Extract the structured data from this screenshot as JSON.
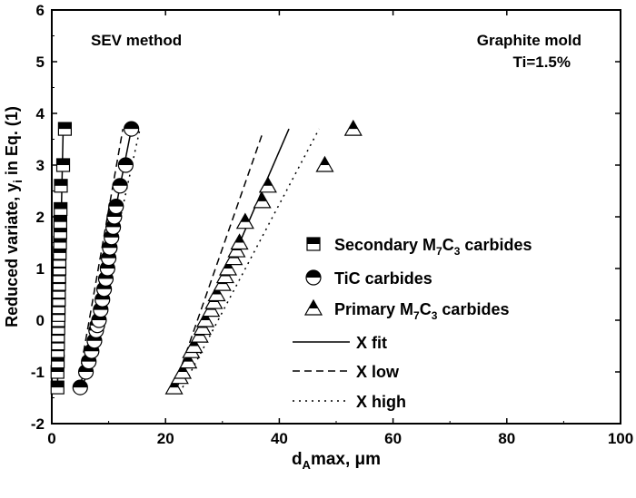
{
  "chart_data": {
    "type": "scatter",
    "xlabel_main": "d",
    "xlabel_sub": "A",
    "xlabel_rest": "max, μm",
    "ylabel_main": "Reduced variate,  y",
    "ylabel_sub": "i",
    "ylabel_rest": " in Eq. (1)",
    "xlim": [
      0,
      100
    ],
    "ylim": [
      -2,
      6
    ],
    "xticks": [
      "0",
      "20",
      "40",
      "60",
      "80",
      "100"
    ],
    "yticks": [
      "-2",
      "-1",
      "0",
      "1",
      "2",
      "3",
      "4",
      "5",
      "6"
    ],
    "annotations": {
      "left": "SEV method",
      "right1": "Graphite mold",
      "right2": "Ti=1.5%"
    },
    "legend_position": "right",
    "series": [
      {
        "name": "Secondary M7C3 carbides",
        "label_a": "Secondary M",
        "sub1": "7",
        "label_b": "C",
        "sub2": "3",
        "label_c": " carbides",
        "marker": "square",
        "x": [
          1.0,
          1.0,
          1.05,
          1.05,
          1.1,
          1.1,
          1.15,
          1.15,
          1.2,
          1.2,
          1.25,
          1.25,
          1.3,
          1.3,
          1.35,
          1.35,
          1.4,
          1.45,
          1.5,
          1.5,
          1.55,
          1.6,
          2.0,
          2.3
        ],
        "y": [
          -1.3,
          -1.0,
          -0.8,
          -0.6,
          -0.45,
          -0.3,
          -0.15,
          0,
          0.1,
          0.25,
          0.4,
          0.55,
          0.7,
          0.85,
          1.0,
          1.15,
          1.3,
          1.5,
          1.7,
          1.9,
          2.15,
          2.6,
          3.0,
          3.7
        ]
      },
      {
        "name": "TiC carbides",
        "label_a": "TiC carbides",
        "marker": "circle",
        "x": [
          5.0,
          6.0,
          6.5,
          7.0,
          7.5,
          7.8,
          8.0,
          8.3,
          8.6,
          8.9,
          9.2,
          9.5,
          9.8,
          10.0,
          10.2,
          10.5,
          10.8,
          11.0,
          11.3,
          12.0,
          13.0,
          14.0
        ],
        "y": [
          -1.3,
          -1.0,
          -0.8,
          -0.6,
          -0.4,
          -0.2,
          -0.1,
          0,
          0.2,
          0.4,
          0.6,
          0.8,
          1.0,
          1.2,
          1.4,
          1.6,
          1.8,
          2.0,
          2.2,
          2.6,
          3.0,
          3.7
        ]
      },
      {
        "name": "Primary M7C3 carbides",
        "label_a": "Primary M",
        "sub1": "7",
        "label_b": "C",
        "sub2": "3",
        "label_c": " carbides",
        "marker": "triangle",
        "x": [
          21.5,
          22.5,
          23,
          24,
          24.5,
          25,
          26,
          26.5,
          27,
          28,
          28.5,
          29,
          30,
          30.5,
          31,
          32,
          32.5,
          33,
          34,
          37,
          38,
          48,
          53
        ],
        "y": [
          -1.3,
          -1.1,
          -1.0,
          -0.8,
          -0.6,
          -0.5,
          -0.3,
          -0.15,
          0,
          0.2,
          0.35,
          0.5,
          0.7,
          0.85,
          1.0,
          1.2,
          1.35,
          1.5,
          1.9,
          2.3,
          2.6,
          3.0,
          3.7
        ]
      }
    ],
    "lines": [
      {
        "name": "X fit",
        "style": "solid",
        "segments": [
          [
            [
              1.0,
              -1.3
            ],
            [
              2.0,
              3.7
            ]
          ],
          [
            [
              5.0,
              -1.3
            ],
            [
              14.0,
              3.7
            ]
          ],
          [
            [
              22,
              -1.3
            ],
            [
              41.7,
              3.7
            ]
          ]
        ]
      },
      {
        "name": "X low",
        "style": "dashed",
        "segments": [
          [
            [
              4.5,
              -1.3
            ],
            [
              12.5,
              3.7
            ]
          ],
          [
            [
              21.5,
              -1.3
            ],
            [
              37,
              3.6
            ]
          ]
        ]
      },
      {
        "name": "X high",
        "style": "dotted",
        "segments": [
          [
            [
              5.5,
              -1.3
            ],
            [
              15.5,
              3.7
            ]
          ],
          [
            [
              23,
              -1.3
            ],
            [
              47,
              3.7
            ]
          ]
        ]
      }
    ]
  }
}
